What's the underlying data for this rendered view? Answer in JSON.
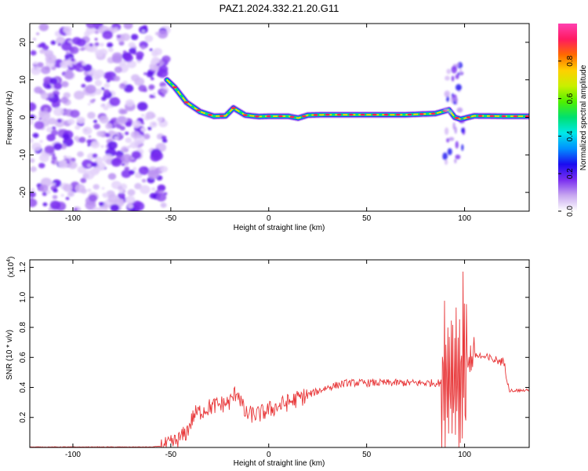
{
  "figure": {
    "title": "PAZ1.2024.332.21.20.G11",
    "colors": {
      "line": "#e8383a",
      "frame": "#000000",
      "background": "#ffffff"
    }
  },
  "chart_data": [
    {
      "type": "heatmap",
      "xlabel": "Height of straight line (km)",
      "ylabel": "Frequency (Hz)",
      "xlim": [
        -122,
        133
      ],
      "ylim": [
        -25,
        25
      ],
      "xticks": [
        -100,
        -50,
        0,
        50,
        100
      ],
      "yticks": [
        -20,
        -10,
        0,
        10,
        20
      ],
      "colorbar": {
        "label": "Normalized spectral amplitude",
        "range": [
          0,
          1
        ],
        "ticks": [
          "0.0",
          "0.2",
          "0.4",
          "0.6",
          "0.8"
        ],
        "tick_values": [
          0.0,
          0.2,
          0.4,
          0.6,
          0.8
        ],
        "colormap": [
          "#ffffff",
          "#c8a8f0",
          "#7a2ef0",
          "#1a0cf0",
          "#0090ff",
          "#00e8e8",
          "#00e070",
          "#50f000",
          "#c8f000",
          "#ffd000",
          "#ff6a00",
          "#ff1a60",
          "#ff40b0"
        ]
      },
      "ridge": {
        "description_points": [
          [
            -52,
            10
          ],
          [
            -48,
            8
          ],
          [
            -42,
            4
          ],
          [
            -35,
            1.5
          ],
          [
            -28,
            0.3
          ],
          [
            -22,
            0.4
          ],
          [
            -18,
            2.5
          ],
          [
            -12,
            0.6
          ],
          [
            -5,
            0.2
          ],
          [
            0,
            0.3
          ],
          [
            10,
            0.3
          ],
          [
            15,
            -0.2
          ],
          [
            20,
            0.6
          ],
          [
            30,
            0.7
          ],
          [
            50,
            0.7
          ],
          [
            70,
            0.7
          ],
          [
            85,
            1
          ],
          [
            92,
            2
          ],
          [
            95,
            0
          ],
          [
            98,
            -0.5
          ],
          [
            105,
            0.4
          ],
          [
            120,
            0.3
          ],
          [
            133,
            0.3
          ]
        ]
      }
    },
    {
      "type": "line",
      "xlabel": "Height of straight line (km)",
      "ylabel": "SNR (10 * v/v)",
      "scale_label": "(x10",
      "scale_exp": "4",
      "scale_close": ")",
      "xlim": [
        -122,
        133
      ],
      "ylim": [
        0,
        1.25
      ],
      "xticks": [
        -100,
        -50,
        0,
        50,
        100
      ],
      "yticks": [
        0.2,
        0.4,
        0.6,
        0.8,
        1.0,
        1.2
      ],
      "series": [
        {
          "values_envelope": [
            [
              -122,
              0.003
            ],
            [
              -60,
              0.003
            ],
            [
              -52,
              0.01
            ],
            [
              -46,
              0.05
            ],
            [
              -42,
              0.1
            ],
            [
              -38,
              0.22
            ],
            [
              -30,
              0.27
            ],
            [
              -20,
              0.3
            ],
            [
              -16,
              0.38
            ],
            [
              -12,
              0.22
            ],
            [
              -5,
              0.22
            ],
            [
              0,
              0.25
            ],
            [
              10,
              0.3
            ],
            [
              20,
              0.35
            ],
            [
              30,
              0.4
            ],
            [
              40,
              0.43
            ],
            [
              50,
              0.43
            ],
            [
              60,
              0.43
            ],
            [
              70,
              0.43
            ],
            [
              80,
              0.43
            ],
            [
              88,
              0.43
            ],
            [
              92,
              0.45
            ],
            [
              95,
              0.4
            ],
            [
              98,
              0.5
            ],
            [
              100,
              0.55
            ],
            [
              105,
              0.62
            ],
            [
              110,
              0.6
            ],
            [
              120,
              0.57
            ],
            [
              123,
              0.38
            ],
            [
              133,
              0.38
            ]
          ]
        }
      ]
    }
  ]
}
